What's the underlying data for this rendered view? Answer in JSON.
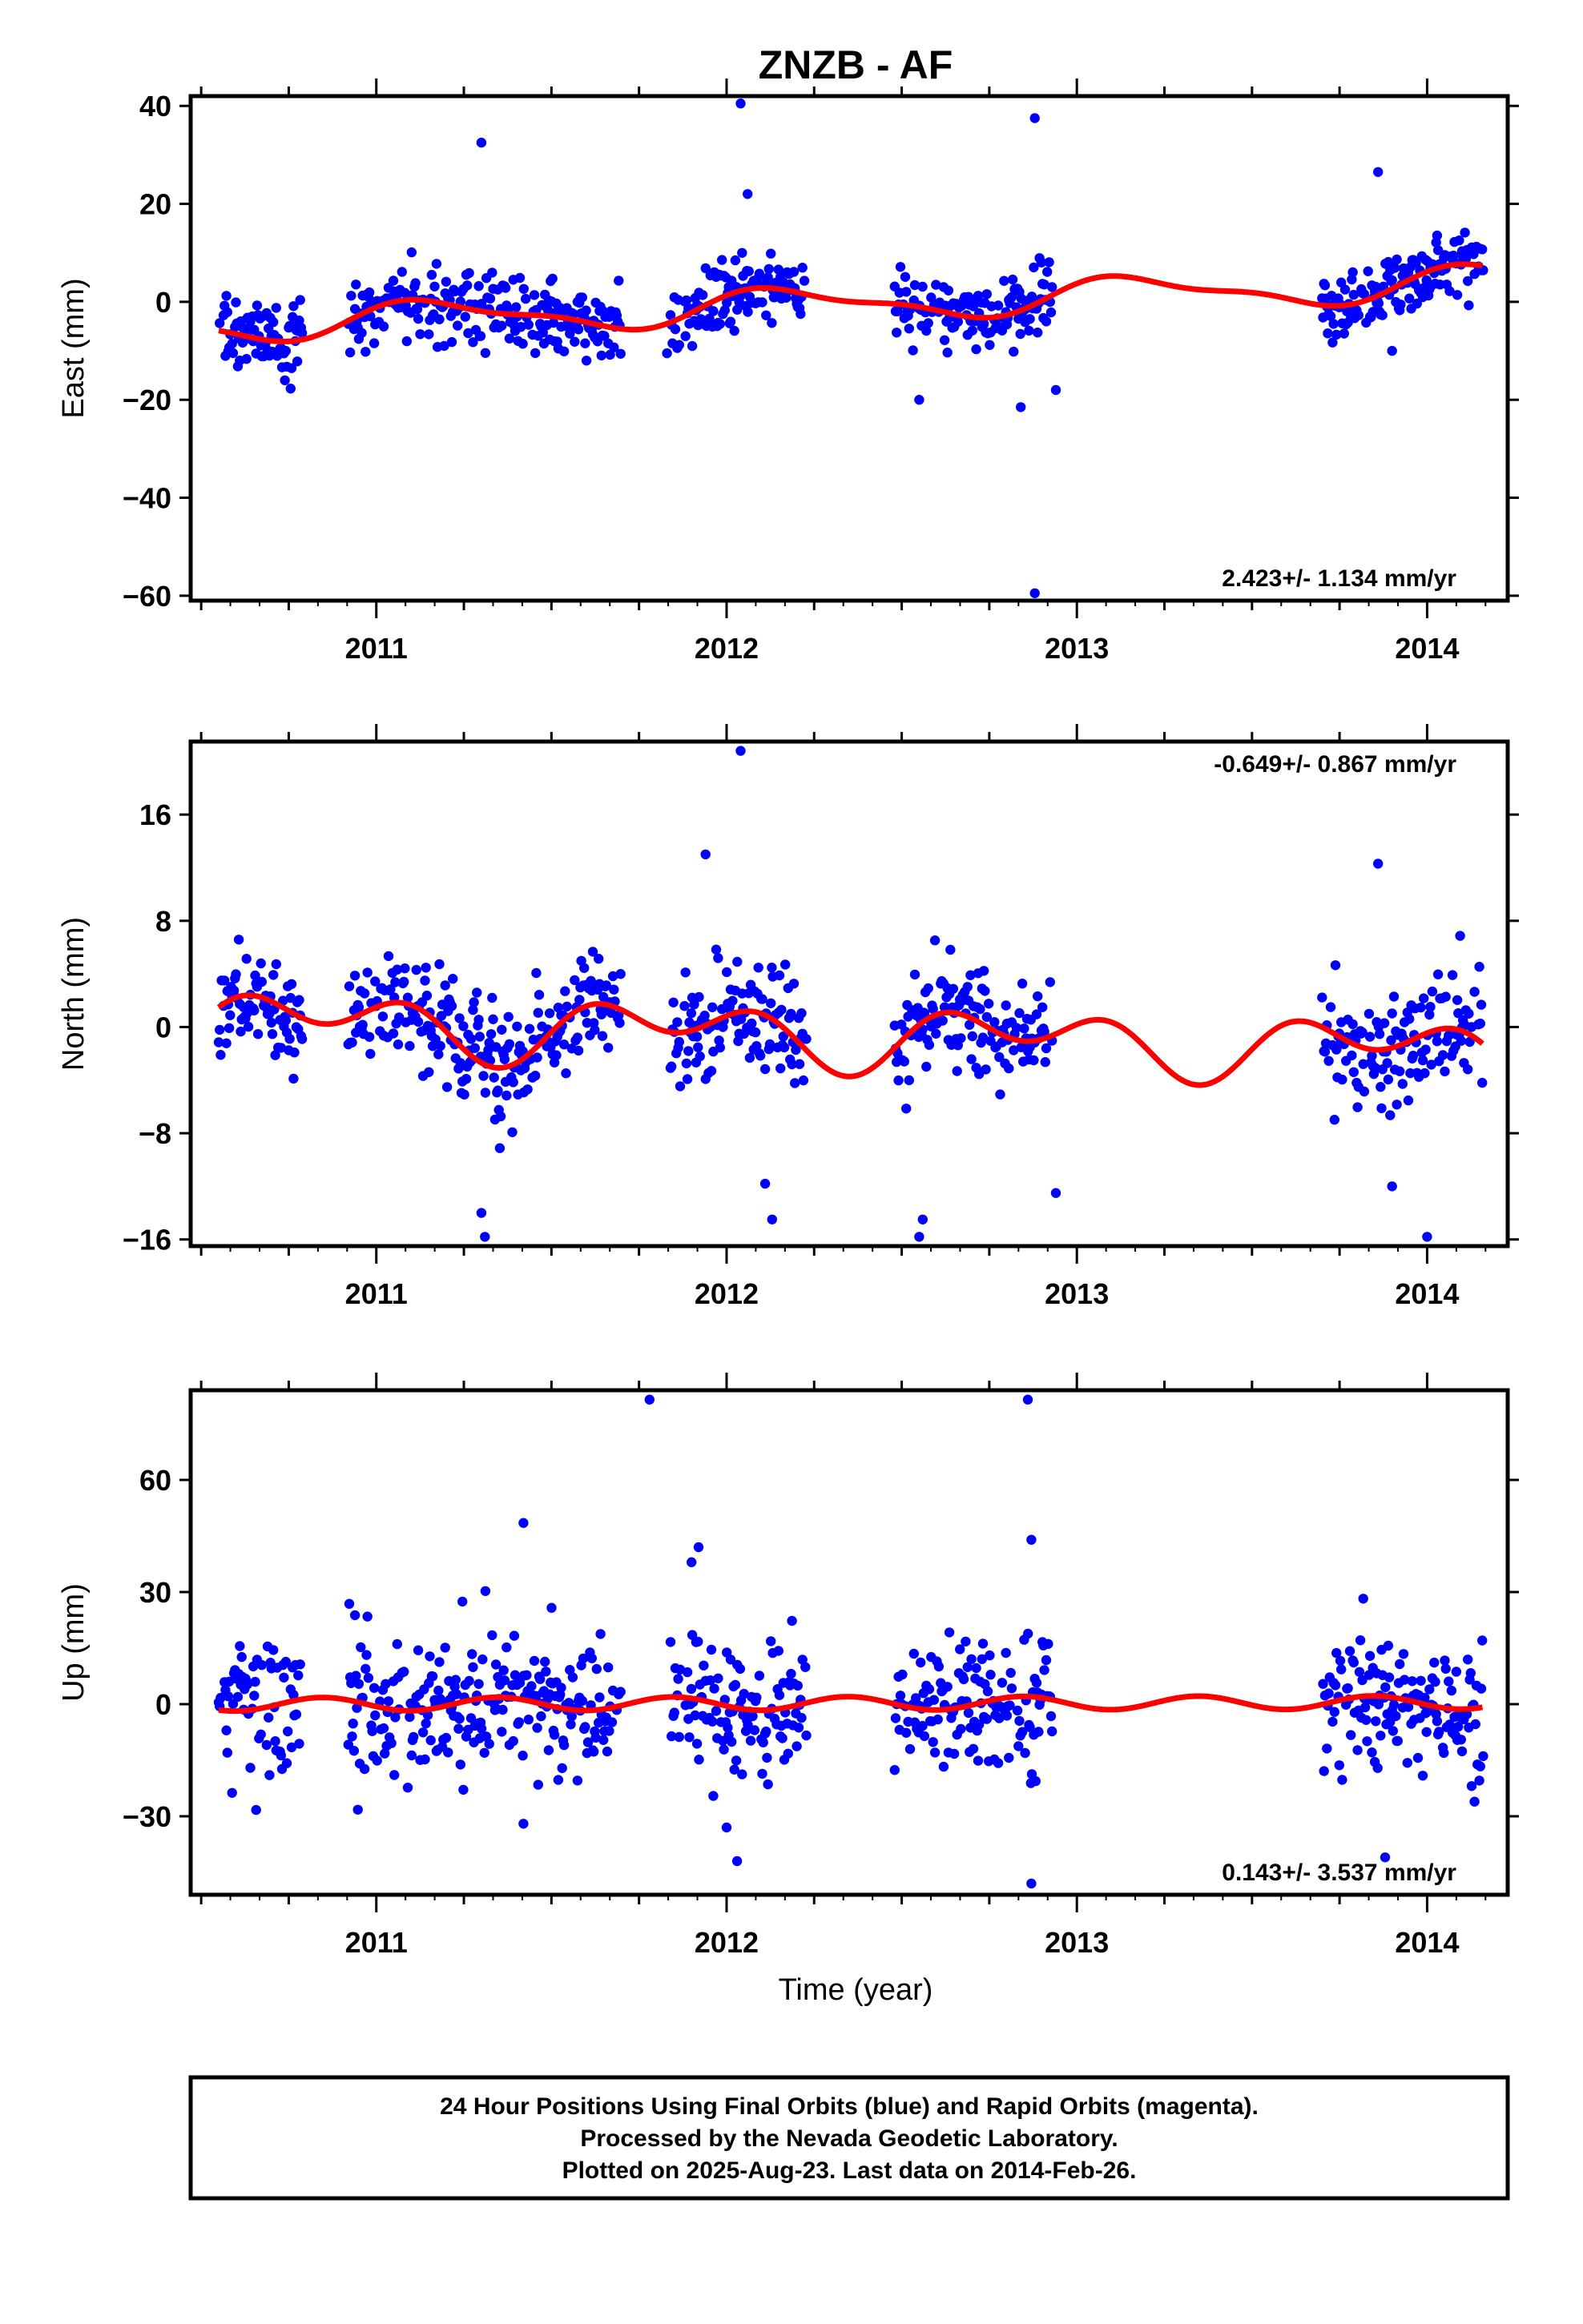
{
  "title": "ZNZB - AF",
  "xlabel": "Time (year)",
  "caption": [
    "24 Hour Positions Using Final Orbits (blue) and Rapid Orbits (magenta).",
    "Processed by the Nevada Geodetic Laboratory.",
    "Plotted on 2025-Aug-23. Last data on 2014-Feb-26."
  ],
  "colors": {
    "points": "#0000ff",
    "fit": "#ff0000",
    "frame": "#000000"
  },
  "chart_data": [
    {
      "type": "scatter",
      "component": "east",
      "ylabel": "East (mm)",
      "rate_text": "2.423+/- 1.134 mm/yr",
      "rate_position": "bottom-right",
      "xlim": [
        2010.47,
        2014.23
      ],
      "ylim": [
        -61,
        42
      ],
      "yticks": [
        40,
        20,
        0,
        -20,
        -40,
        -60
      ],
      "ytick_labels": [
        "40",
        "20",
        "0",
        "−20",
        "−40",
        "−60"
      ],
      "xticks": [
        2011,
        2012,
        2013,
        2014
      ],
      "xtick_labels": [
        "2011",
        "2012",
        "2013",
        "2014"
      ],
      "grid": false,
      "data_segments": [
        [
          2010.55,
          2010.79
        ],
        [
          2010.92,
          2011.7
        ],
        [
          2011.84,
          2011.87
        ],
        [
          2011.88,
          2012.23
        ],
        [
          2012.48,
          2012.93
        ],
        [
          2013.7,
          2014.16
        ]
      ],
      "scatter_sd": 3.5,
      "trend": {
        "rate": 2.423,
        "offset": -0.5,
        "ref": 2012.3
      },
      "seasonal": [
        {
          "period": 1.0,
          "amp": 3.2,
          "phase": 0.5
        },
        {
          "period": 0.5,
          "amp": 1.2,
          "phase": 1.0
        }
      ],
      "outliers": [
        [
          2011.3,
          32.5
        ],
        [
          2012.04,
          40.5
        ],
        [
          2012.06,
          22
        ],
        [
          2012.88,
          37.5
        ],
        [
          2012.88,
          -59.5
        ],
        [
          2012.84,
          -21.5
        ],
        [
          2012.55,
          -20
        ],
        [
          2012.94,
          -18
        ],
        [
          2011.6,
          -12
        ],
        [
          2011.83,
          -10.5
        ],
        [
          2013.86,
          26.5
        ],
        [
          2013.9,
          -10
        ]
      ]
    },
    {
      "type": "scatter",
      "component": "north",
      "ylabel": "North (mm)",
      "rate_text": "-0.649+/- 0.867 mm/yr",
      "rate_position": "top-right",
      "xlim": [
        2010.47,
        2014.23
      ],
      "ylim": [
        -16.5,
        21.5
      ],
      "yticks": [
        16,
        8,
        0,
        -8,
        -16
      ],
      "ytick_labels": [
        "16",
        "8",
        "0",
        "−8",
        "−16"
      ],
      "xticks": [
        2011,
        2012,
        2013,
        2014
      ],
      "xtick_labels": [
        "2011",
        "2012",
        "2013",
        "2014"
      ],
      "grid": false,
      "data_segments": [
        [
          2010.55,
          2010.79
        ],
        [
          2010.92,
          2011.7
        ],
        [
          2011.84,
          2011.87
        ],
        [
          2011.88,
          2012.23
        ],
        [
          2012.48,
          2012.93
        ],
        [
          2013.7,
          2014.16
        ]
      ],
      "scatter_sd": 2.2,
      "trend": {
        "rate": -0.649,
        "offset": -0.6,
        "ref": 2012.3
      },
      "seasonal": [
        {
          "period": 1.0,
          "amp": 1.5,
          "phase": 2.6
        },
        {
          "period": 0.5,
          "amp": 1.6,
          "phase": 0.3
        }
      ],
      "outliers": [
        [
          2012.04,
          20.8
        ],
        [
          2011.94,
          13
        ],
        [
          2013.86,
          12.3
        ],
        [
          2011.3,
          -14
        ],
        [
          2011.31,
          -15.8
        ],
        [
          2012.13,
          -14.5
        ],
        [
          2012.56,
          -14.5
        ],
        [
          2012.55,
          -15.8
        ],
        [
          2014.0,
          -15.8
        ],
        [
          2013.9,
          -12
        ],
        [
          2012.94,
          -12.5
        ],
        [
          2012.11,
          -11.8
        ]
      ]
    },
    {
      "type": "scatter",
      "component": "up",
      "ylabel": "Up (mm)",
      "rate_text": "0.143+/- 3.537 mm/yr",
      "rate_position": "bottom-right",
      "xlim": [
        2010.47,
        2014.23
      ],
      "ylim": [
        -51,
        84
      ],
      "yticks": [
        60,
        30,
        0,
        -30
      ],
      "ytick_labels": [
        "60",
        "30",
        "0",
        "−30"
      ],
      "xticks": [
        2011,
        2012,
        2013,
        2014
      ],
      "xtick_labels": [
        "2011",
        "2012",
        "2013",
        "2014"
      ],
      "grid": false,
      "data_segments": [
        [
          2010.55,
          2010.79
        ],
        [
          2010.92,
          2011.7
        ],
        [
          2011.84,
          2011.87
        ],
        [
          2011.88,
          2012.23
        ],
        [
          2012.48,
          2012.93
        ],
        [
          2013.7,
          2014.16
        ]
      ],
      "scatter_sd": 9.5,
      "trend": {
        "rate": 0.143,
        "offset": 0.2,
        "ref": 2012.3
      },
      "seasonal": [
        {
          "period": 0.5,
          "amp": 1.8,
          "phase": 3.5
        }
      ],
      "outliers": [
        [
          2011.78,
          81.5
        ],
        [
          2012.86,
          81.5
        ],
        [
          2011.42,
          48.5
        ],
        [
          2011.92,
          42
        ],
        [
          2011.9,
          38
        ],
        [
          2012.87,
          44
        ],
        [
          2012.03,
          -42
        ],
        [
          2012.87,
          -48
        ],
        [
          2013.88,
          -41
        ],
        [
          2011.42,
          -32
        ],
        [
          2012.0,
          -33
        ]
      ]
    }
  ]
}
